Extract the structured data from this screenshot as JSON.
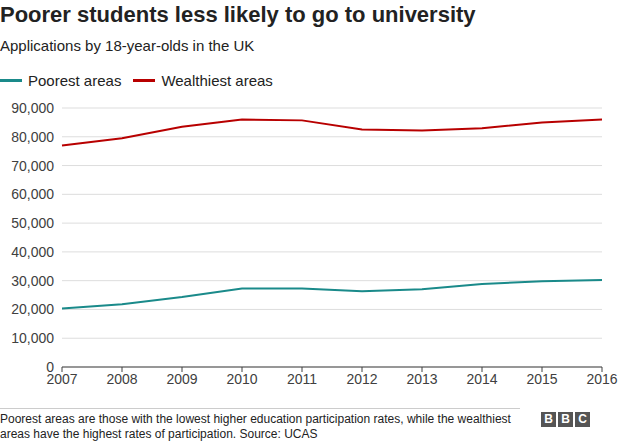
{
  "chart_data": {
    "type": "line",
    "title": "Poorer students less likely to go to university",
    "subtitle": "Applications by 18-year-olds in the UK",
    "categories": [
      "2007",
      "2008",
      "2009",
      "2010",
      "2011",
      "2012",
      "2013",
      "2014",
      "2015",
      "2016"
    ],
    "series": [
      {
        "name": "Poorest areas",
        "color": "#1a8a8a",
        "values": [
          20300,
          21800,
          24300,
          27300,
          27300,
          26300,
          27000,
          28800,
          29800,
          30200
        ]
      },
      {
        "name": "Wealthiest areas",
        "color": "#b80000",
        "values": [
          77000,
          79500,
          83500,
          86000,
          85700,
          82500,
          82200,
          83000,
          85000,
          86000
        ]
      }
    ],
    "ylim": [
      0,
      90000
    ],
    "yticks": [
      0,
      {
        "value": 10000,
        "label": "10,000"
      },
      {
        "value": 20000,
        "label": "20,000"
      },
      {
        "value": 30000,
        "label": "30,000"
      },
      {
        "value": 40000,
        "label": "40,000"
      },
      {
        "value": 50000,
        "label": "50,000"
      },
      {
        "value": 60000,
        "label": "60,000"
      },
      {
        "value": 70000,
        "label": "70,000"
      },
      {
        "value": 80000,
        "label": "80,000"
      },
      {
        "value": 90000,
        "label": "90,000"
      }
    ],
    "grid": true,
    "legend": "top",
    "footnote": "Poorest areas are those with the lowest higher education participation rates, while the wealthiest areas have the highest rates of participation. Source: UCAS",
    "logo": "BBC"
  }
}
